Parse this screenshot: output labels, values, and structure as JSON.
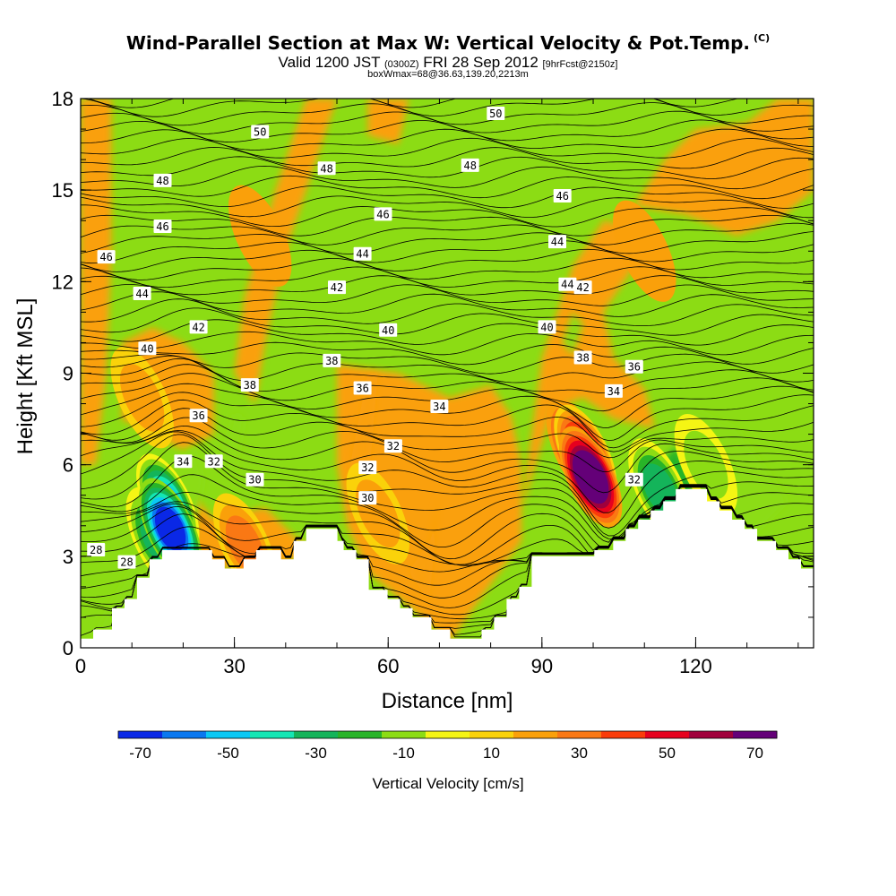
{
  "title": "Wind-Parallel Section at Max W: Vertical Velocity & Pot.Temp.",
  "copyright": "(C)",
  "subtitle_main_a": "Valid 1200 JST",
  "subtitle_small_a": "(0300Z)",
  "subtitle_main_b": "FRI 28 Sep 2012",
  "subtitle_small_b": "[9hrFcst@2150z]",
  "subtitle2": "boxWmax=68@36.63,139.20,2213m",
  "chart_data": {
    "type": "heatmap",
    "xlabel": "Distance [nm]",
    "ylabel": "Height [Kft MSL]",
    "xlim": [
      0,
      143
    ],
    "ylim": [
      0,
      18
    ],
    "xticks": [
      "0",
      "30",
      "60",
      "90",
      "120"
    ],
    "yticks": [
      "0",
      "3",
      "6",
      "9",
      "12",
      "15",
      "18"
    ],
    "colorbar": {
      "title": "Vertical Velocity [cm/s]",
      "tick_labels": [
        "-70",
        "-50",
        "-30",
        "-10",
        "10",
        "30",
        "50",
        "70"
      ],
      "colors": [
        "#0a28e6",
        "#0a78f0",
        "#0ac8f5",
        "#14e6b4",
        "#14b45a",
        "#28b428",
        "#8cdc14",
        "#f5f514",
        "#fad20a",
        "#faa00a",
        "#fa7814",
        "#fa3c0a",
        "#e6001e",
        "#a0003c",
        "#640078"
      ]
    },
    "terrain_heights_kft": [
      0.3,
      0.3,
      0.6,
      0.6,
      0.6,
      1.3,
      1.3,
      1.6,
      1.6,
      2.3,
      2.3,
      2.9,
      2.9,
      3.2,
      3.2,
      3.2,
      3.2,
      3.2,
      3.2,
      3.2,
      3.2,
      2.9,
      2.9,
      2.6,
      2.6,
      2.6,
      2.9,
      2.9,
      3.2,
      3.2,
      3.2,
      3.2,
      2.9,
      2.9,
      3.5,
      3.5,
      3.9,
      3.9,
      3.9,
      3.9,
      3.9,
      3.5,
      3.2,
      3.2,
      2.9,
      2.9,
      1.9,
      1.9,
      1.9,
      1.6,
      1.6,
      1.3,
      1.3,
      1.0,
      1.0,
      1.0,
      0.6,
      0.6,
      0.6,
      0.3,
      0.3,
      0.3,
      0.3,
      0.3,
      0.6,
      0.6,
      1.0,
      1.0,
      1.6,
      1.6,
      2.0,
      2.0,
      3.0,
      3.0,
      3.0,
      3.0,
      3.0,
      3.0,
      3.0,
      3.0,
      3.0,
      3.0,
      3.2,
      3.2,
      3.2,
      3.5,
      3.5,
      3.9,
      3.9,
      4.2,
      4.2,
      4.5,
      4.5,
      4.8,
      4.8,
      5.2,
      5.2,
      5.2,
      5.2,
      5.2,
      4.8,
      4.8,
      4.5,
      4.5,
      4.2,
      4.2,
      3.9,
      3.9,
      3.5,
      3.5,
      3.5,
      3.2,
      3.2,
      2.9,
      2.9,
      2.6,
      2.6
    ],
    "contours": {
      "variable": "Potential temperature",
      "levels": [
        "28",
        "30",
        "32",
        "34",
        "36",
        "38",
        "40",
        "42",
        "44",
        "46",
        "48",
        "50"
      ]
    },
    "contour_labels": [
      "50",
      "50",
      "48",
      "48",
      "48",
      "46",
      "46",
      "46",
      "46",
      "44",
      "44",
      "44",
      "44",
      "42",
      "42",
      "42",
      "40",
      "40",
      "40",
      "38",
      "38",
      "38",
      "36",
      "36",
      "36",
      "34",
      "34",
      "34",
      "32",
      "32",
      "32",
      "32",
      "30",
      "30",
      "28",
      "28"
    ],
    "w_cells_cm_s": [
      {
        "x": 17.5,
        "z": 3.9,
        "w": -72
      },
      {
        "x": 17,
        "z": 4.7,
        "w": -55
      },
      {
        "x": 15,
        "z": 3.6,
        "w": -38
      },
      {
        "x": 99.5,
        "z": 5.6,
        "w": 72
      },
      {
        "x": 98.5,
        "z": 6.3,
        "w": 55
      },
      {
        "x": 97,
        "z": 6.5,
        "w": 40
      },
      {
        "x": 12,
        "z": 8.2,
        "w": 18
      },
      {
        "x": 32,
        "z": 3.4,
        "w": 25
      },
      {
        "x": 58,
        "z": 4.4,
        "w": 18
      },
      {
        "x": 113,
        "z": 5.2,
        "w": -35
      },
      {
        "x": 122,
        "z": 6.0,
        "w": -15
      },
      {
        "x": 35,
        "z": 13.5,
        "w": 10
      },
      {
        "x": 110,
        "z": 13.0,
        "w": 10
      }
    ]
  }
}
